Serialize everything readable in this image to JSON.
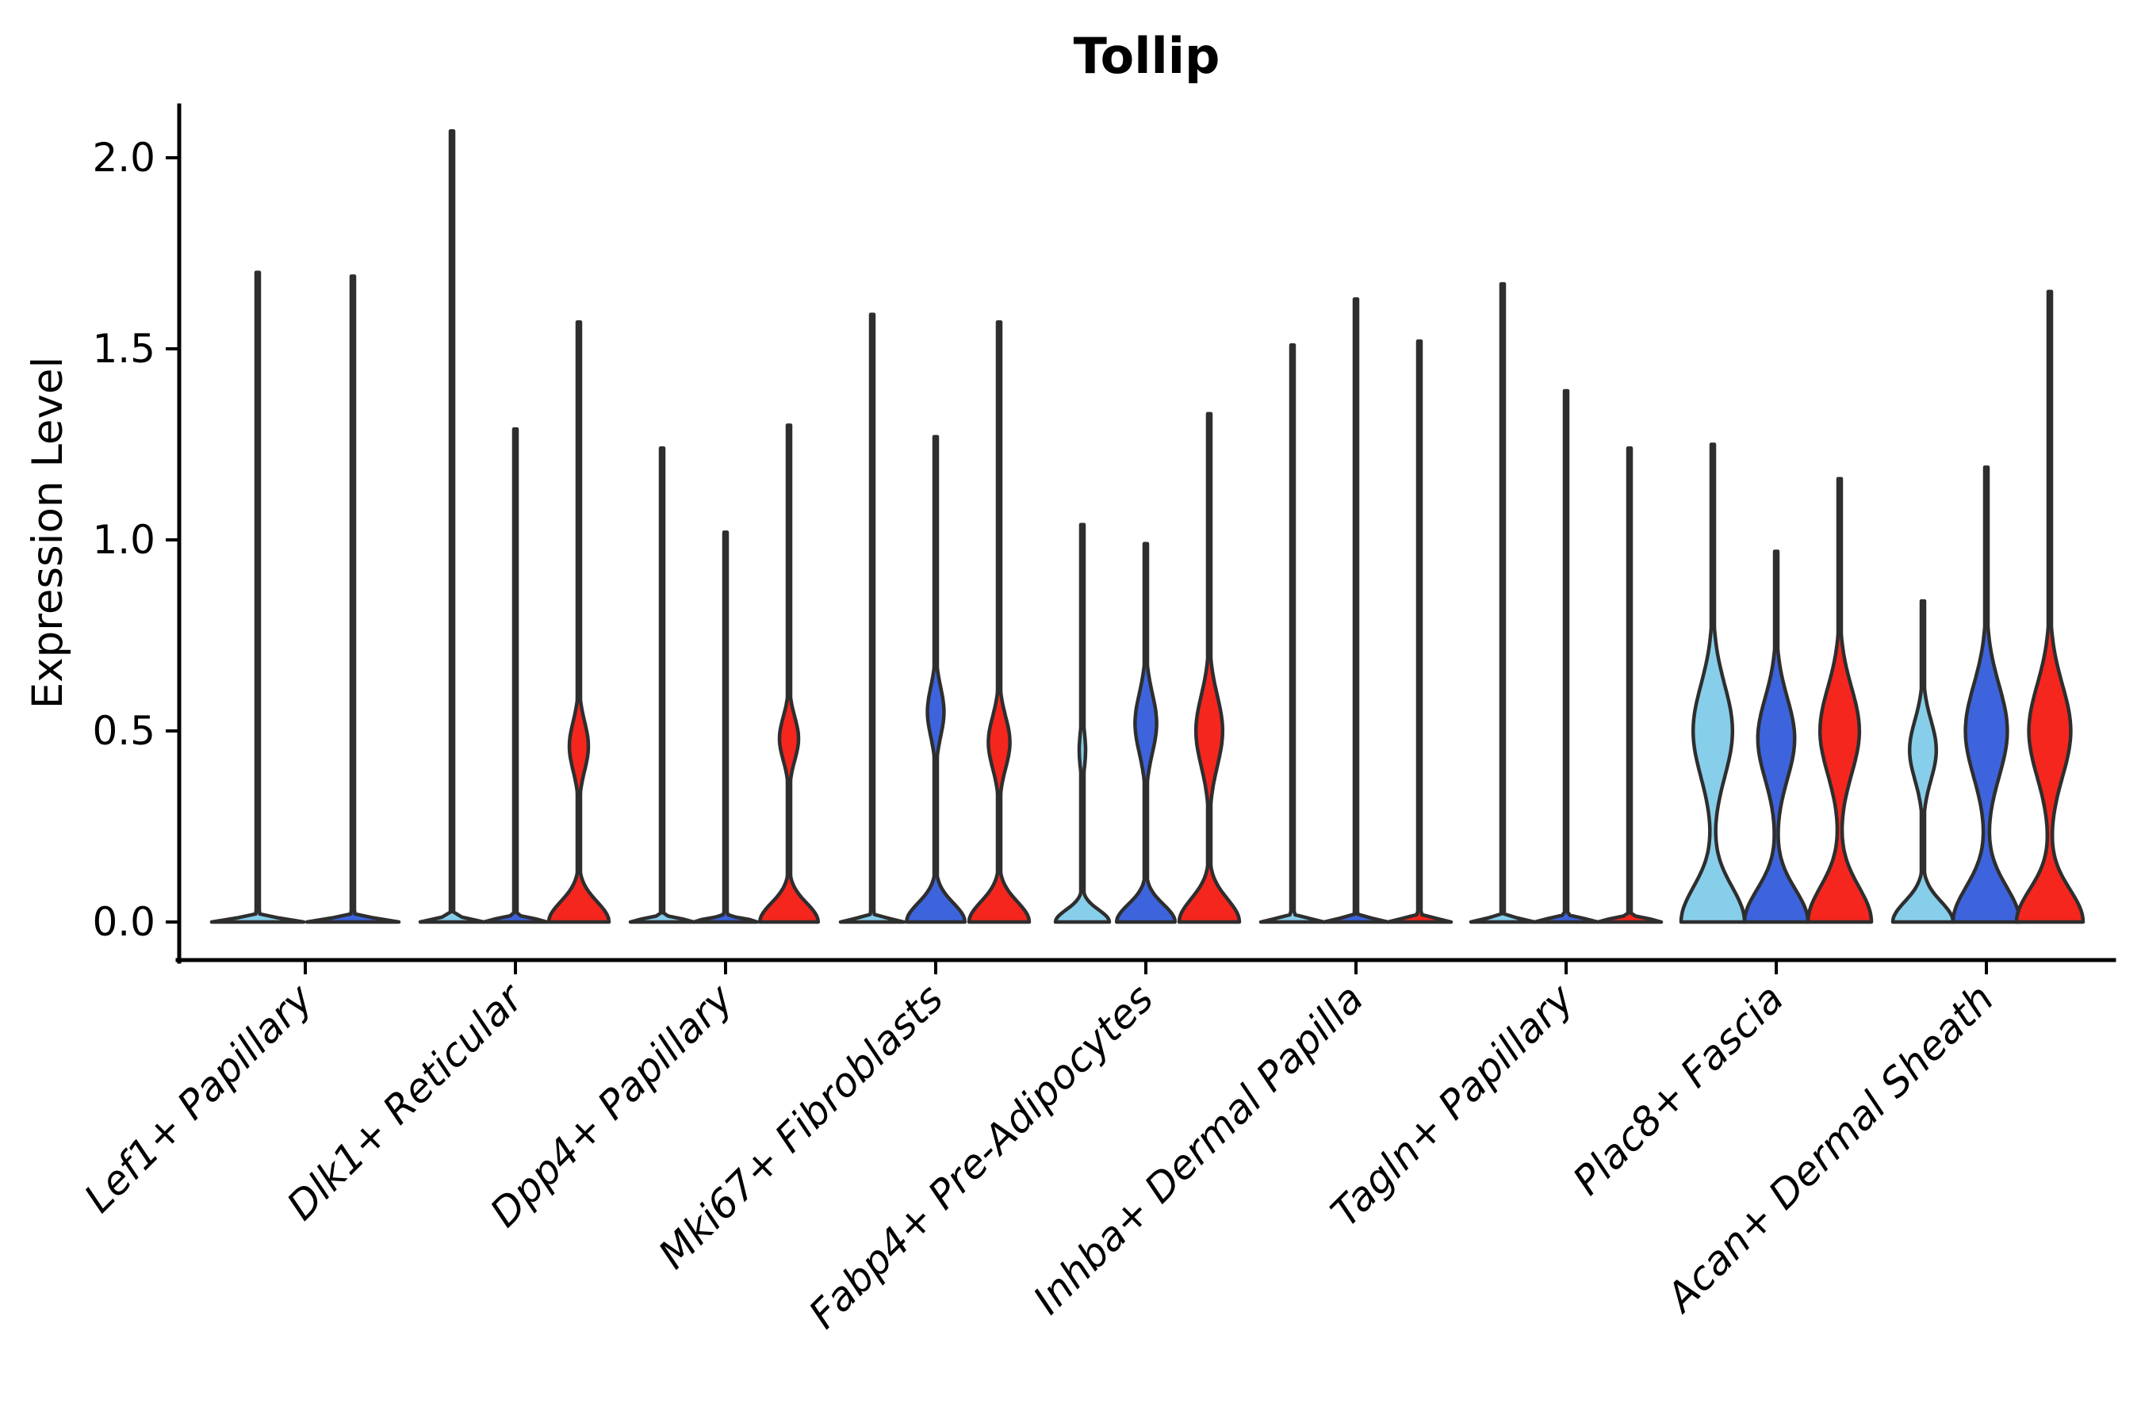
{
  "chart_data": {
    "type": "violin",
    "title": "Tollip",
    "ylabel": "Expression Level",
    "xlabel": "",
    "grid": "off",
    "legend_position": "none",
    "ylim": [
      -0.1,
      2.15
    ],
    "ytick_values": [
      0.0,
      0.5,
      1.0,
      1.5,
      2.0
    ],
    "ytick_labels": [
      "0.0",
      "0.5",
      "1.0",
      "1.5",
      "2.0"
    ],
    "categories": [
      "Lef1+ Papillary",
      "Dlk1+ Reticular",
      "Dpp4+ Papillary",
      "Mki67+ Fibroblasts",
      "Fabp4+ Pre-Adipocytes",
      "Inhba+ Dermal Papilla",
      "Tagln+ Papillary",
      "Plac8+ Fascia",
      "Acan+ Dermal Sheath"
    ],
    "sample_colors": {
      "light_blue": "#87CEEB",
      "blue": "#3D64DD",
      "red": "#F5261D"
    },
    "outline_color": "#2E2E2E",
    "violins": [
      {
        "category": "Lef1+ Papillary",
        "sample": "light_blue",
        "max_expression": 1.7,
        "profile": [
          [
            1.0,
            0,
            0.012
          ]
        ]
      },
      {
        "category": "Lef1+ Papillary",
        "sample": "blue",
        "max_expression": 1.69,
        "profile": [
          [
            1.0,
            0,
            0.012
          ]
        ]
      },
      {
        "category": "Dlk1+ Reticular",
        "sample": "light_blue",
        "max_expression": 2.07,
        "profile": [
          [
            1.0,
            0,
            0.012
          ]
        ]
      },
      {
        "category": "Dlk1+ Reticular",
        "sample": "blue",
        "max_expression": 1.29,
        "profile": [
          [
            1.0,
            0,
            0.012
          ]
        ]
      },
      {
        "category": "Dlk1+ Reticular",
        "sample": "red",
        "max_expression": 1.57,
        "profile": [
          [
            0.95,
            0,
            0.075
          ],
          [
            0.3,
            0.46,
            0.09
          ]
        ]
      },
      {
        "category": "Dpp4+ Papillary",
        "sample": "light_blue",
        "max_expression": 1.24,
        "profile": [
          [
            1.0,
            0,
            0.012
          ]
        ]
      },
      {
        "category": "Dpp4+ Papillary",
        "sample": "blue",
        "max_expression": 1.02,
        "profile": [
          [
            1.0,
            0,
            0.012
          ]
        ]
      },
      {
        "category": "Dpp4+ Papillary",
        "sample": "red",
        "max_expression": 1.3,
        "profile": [
          [
            0.92,
            0,
            0.07
          ],
          [
            0.3,
            0.48,
            0.08
          ]
        ]
      },
      {
        "category": "Mki67+ Fibroblasts",
        "sample": "light_blue",
        "max_expression": 1.59,
        "profile": [
          [
            1.0,
            0,
            0.012
          ]
        ]
      },
      {
        "category": "Mki67+ Fibroblasts",
        "sample": "blue",
        "max_expression": 1.27,
        "profile": [
          [
            0.92,
            0,
            0.07
          ],
          [
            0.26,
            0.55,
            0.09
          ]
        ]
      },
      {
        "category": "Mki67+ Fibroblasts",
        "sample": "red",
        "max_expression": 1.57,
        "profile": [
          [
            0.95,
            0,
            0.075
          ],
          [
            0.34,
            0.47,
            0.095
          ]
        ]
      },
      {
        "category": "Fabp4+ Pre-Adipocytes",
        "sample": "light_blue",
        "max_expression": 1.04,
        "profile": [
          [
            0.85,
            0,
            0.045
          ],
          [
            0.1,
            0.45,
            0.07
          ]
        ]
      },
      {
        "category": "Fabp4+ Pre-Adipocytes",
        "sample": "blue",
        "max_expression": 0.99,
        "profile": [
          [
            0.92,
            0,
            0.065
          ],
          [
            0.34,
            0.52,
            0.11
          ]
        ]
      },
      {
        "category": "Fabp4+ Pre-Adipocytes",
        "sample": "red",
        "max_expression": 1.33,
        "profile": [
          [
            0.95,
            0,
            0.085
          ],
          [
            0.42,
            0.5,
            0.13
          ]
        ]
      },
      {
        "category": "Inhba+ Dermal Papilla",
        "sample": "light_blue",
        "max_expression": 1.51,
        "profile": [
          [
            1.0,
            0,
            0.012
          ]
        ]
      },
      {
        "category": "Inhba+ Dermal Papilla",
        "sample": "blue",
        "max_expression": 1.63,
        "profile": [
          [
            1.0,
            0,
            0.012
          ]
        ]
      },
      {
        "category": "Inhba+ Dermal Papilla",
        "sample": "red",
        "max_expression": 1.52,
        "profile": [
          [
            1.0,
            0,
            0.012
          ]
        ]
      },
      {
        "category": "Tagln+ Papillary",
        "sample": "light_blue",
        "max_expression": 1.67,
        "profile": [
          [
            1.0,
            0,
            0.012
          ]
        ]
      },
      {
        "category": "Tagln+ Papillary",
        "sample": "blue",
        "max_expression": 1.39,
        "profile": [
          [
            1.0,
            0,
            0.012
          ]
        ]
      },
      {
        "category": "Tagln+ Papillary",
        "sample": "red",
        "max_expression": 1.24,
        "profile": [
          [
            1.0,
            0,
            0.012
          ]
        ]
      },
      {
        "category": "Plac8+ Fascia",
        "sample": "light_blue",
        "max_expression": 1.25,
        "profile": [
          [
            1.0,
            0,
            0.13
          ],
          [
            0.62,
            0.5,
            0.17
          ]
        ]
      },
      {
        "category": "Plac8+ Fascia",
        "sample": "blue",
        "max_expression": 0.97,
        "profile": [
          [
            1.0,
            0,
            0.12
          ],
          [
            0.58,
            0.48,
            0.15
          ]
        ]
      },
      {
        "category": "Plac8+ Fascia",
        "sample": "red",
        "max_expression": 1.16,
        "profile": [
          [
            1.0,
            0,
            0.13
          ],
          [
            0.62,
            0.5,
            0.16
          ]
        ]
      },
      {
        "category": "Acan+ Dermal Sheath",
        "sample": "light_blue",
        "max_expression": 0.84,
        "profile": [
          [
            0.95,
            0,
            0.075
          ],
          [
            0.42,
            0.45,
            0.11
          ]
        ]
      },
      {
        "category": "Acan+ Dermal Sheath",
        "sample": "blue",
        "max_expression": 1.19,
        "profile": [
          [
            1.05,
            0,
            0.13
          ],
          [
            0.66,
            0.5,
            0.17
          ]
        ]
      },
      {
        "category": "Acan+ Dermal Sheath",
        "sample": "red",
        "max_expression": 1.65,
        "profile": [
          [
            1.05,
            0,
            0.12
          ],
          [
            0.66,
            0.5,
            0.17
          ]
        ]
      }
    ]
  }
}
